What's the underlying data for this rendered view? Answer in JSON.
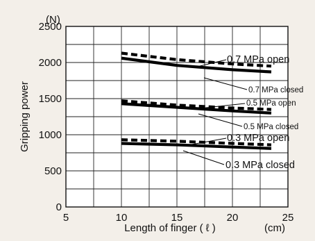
{
  "chart_data": {
    "type": "line",
    "xlabel": "Length of finger ( ℓ )",
    "xunit": "(cm)",
    "ylabel": "Gripping power",
    "yunit": "(N)",
    "xlim": [
      5,
      25
    ],
    "ylim": [
      0,
      2500
    ],
    "xticks": [
      5,
      10,
      15,
      20,
      25
    ],
    "yticks": [
      0,
      500,
      1000,
      1500,
      2000,
      2500
    ],
    "grid": true,
    "series": [
      {
        "name": "0.7 MPa open",
        "style": "dashed",
        "x": [
          10,
          15,
          20,
          23.5
        ],
        "y": [
          2130,
          2040,
          1980,
          1950
        ]
      },
      {
        "name": "0.7 MPa closed",
        "style": "solid",
        "x": [
          10,
          15,
          20,
          23.5
        ],
        "y": [
          2060,
          1960,
          1900,
          1870
        ]
      },
      {
        "name": "0.5 MPa open",
        "style": "dashed",
        "x": [
          10,
          15,
          20,
          23.5
        ],
        "y": [
          1470,
          1410,
          1370,
          1350
        ]
      },
      {
        "name": "0.5 MPa closed",
        "style": "solid",
        "x": [
          10,
          15,
          20,
          23.5
        ],
        "y": [
          1430,
          1380,
          1330,
          1300
        ]
      },
      {
        "name": "0.3 MPa open",
        "style": "dashed",
        "x": [
          10,
          15,
          20,
          23.5
        ],
        "y": [
          930,
          910,
          880,
          860
        ]
      },
      {
        "name": "0.3 MPa closed",
        "style": "solid",
        "x": [
          10,
          15,
          20,
          23.5
        ],
        "y": [
          880,
          860,
          830,
          810
        ]
      }
    ]
  }
}
